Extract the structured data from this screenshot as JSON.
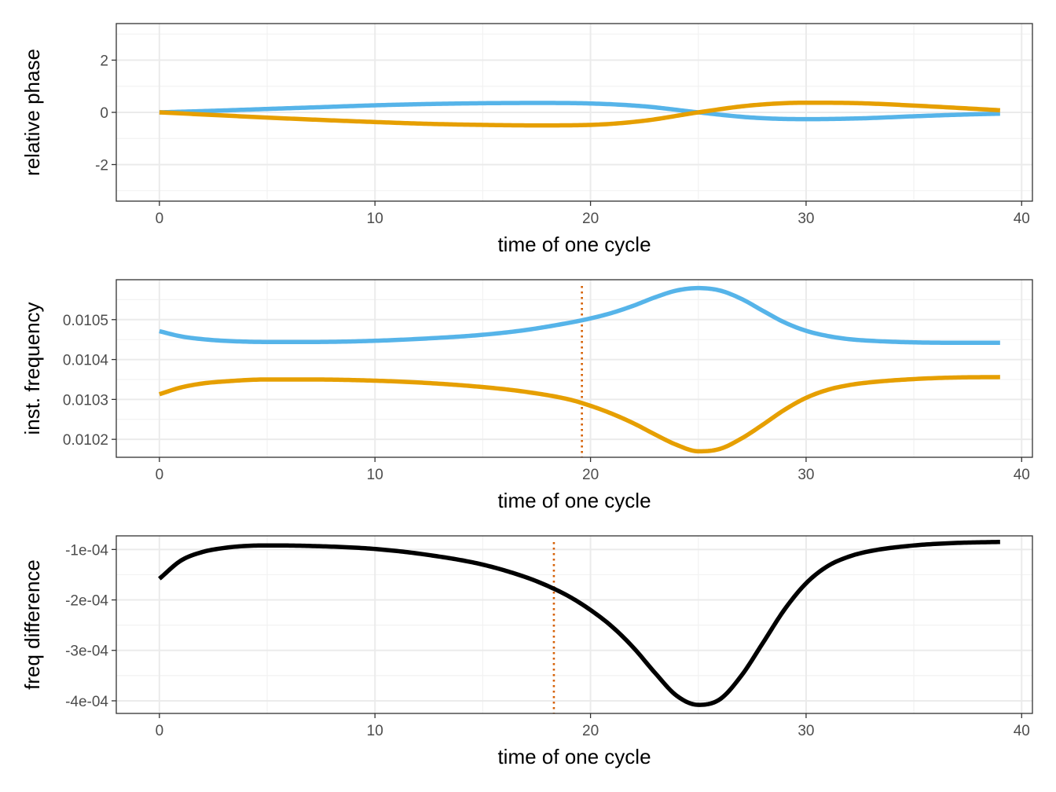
{
  "colors": {
    "series_a": "#56B4E9",
    "series_b": "#E69F00",
    "difference": "#000000",
    "marker": "#D55E00"
  },
  "chart_data": [
    {
      "type": "line",
      "xlabel": "time of one cycle",
      "ylabel": "relative phase",
      "xlim": [
        -2,
        40.5
      ],
      "ylim": [
        -3.4,
        3.4
      ],
      "x_ticks": [
        0,
        10,
        20,
        30,
        40
      ],
      "x_tick_labels": [
        "0",
        "10",
        "20",
        "30",
        "40"
      ],
      "y_ticks": [
        -2,
        0,
        2
      ],
      "y_tick_labels": [
        "-2",
        "0",
        "2"
      ],
      "grid": true,
      "series": [
        {
          "color": "#56B4E9",
          "x": [
            0,
            2.5,
            5,
            7.5,
            10,
            12.5,
            15,
            17.5,
            20,
            22.5,
            25,
            27.5,
            30,
            32.5,
            35,
            37.5,
            39
          ],
          "y": [
            0,
            0.06,
            0.13,
            0.2,
            0.27,
            0.32,
            0.35,
            0.36,
            0.34,
            0.23,
            0.0,
            -0.2,
            -0.26,
            -0.23,
            -0.15,
            -0.08,
            -0.05
          ]
        },
        {
          "color": "#E69F00",
          "x": [
            0,
            2.5,
            5,
            7.5,
            10,
            12.5,
            15,
            17.5,
            20,
            22.5,
            25,
            27.5,
            30,
            32.5,
            35,
            37.5,
            39
          ],
          "y": [
            0,
            -0.1,
            -0.2,
            -0.29,
            -0.37,
            -0.44,
            -0.48,
            -0.5,
            -0.48,
            -0.32,
            0.0,
            0.27,
            0.37,
            0.35,
            0.26,
            0.15,
            0.08
          ]
        }
      ]
    },
    {
      "type": "line",
      "xlabel": "time of one cycle",
      "ylabel": "inst. frequency",
      "xlim": [
        -2,
        40.5
      ],
      "ylim": [
        0.010155,
        0.0106
      ],
      "x_ticks": [
        0,
        10,
        20,
        30,
        40
      ],
      "x_tick_labels": [
        "0",
        "10",
        "20",
        "30",
        "40"
      ],
      "y_ticks": [
        0.0102,
        0.0103,
        0.0104,
        0.0105
      ],
      "y_tick_labels": [
        "0.0102",
        "0.0103",
        "0.0104",
        "0.0105"
      ],
      "vline_x": 19.6,
      "grid": true,
      "series": [
        {
          "color": "#56B4E9",
          "x": [
            0,
            1,
            2,
            3,
            5,
            7,
            10,
            12.5,
            15,
            17,
            19,
            20,
            21,
            22,
            23,
            24,
            25,
            26,
            27,
            28,
            29,
            30,
            31,
            32,
            33,
            35,
            37,
            39
          ],
          "y": [
            0.010471,
            0.010458,
            0.010451,
            0.010447,
            0.010444,
            0.010444,
            0.010447,
            0.010453,
            0.010462,
            0.010474,
            0.010492,
            0.010503,
            0.010517,
            0.010535,
            0.010556,
            0.010573,
            0.010579,
            0.010573,
            0.010552,
            0.010522,
            0.010493,
            0.010472,
            0.010459,
            0.010451,
            0.010447,
            0.010443,
            0.010442,
            0.010442
          ]
        },
        {
          "color": "#E69F00",
          "x": [
            0,
            1,
            2,
            3,
            5,
            7,
            10,
            12.5,
            15,
            17,
            19,
            20,
            21,
            22,
            23,
            24,
            25,
            26,
            27,
            28,
            29,
            30,
            31,
            32,
            33,
            35,
            37,
            39
          ],
          "y": [
            0.010313,
            0.01033,
            0.01034,
            0.010345,
            0.01035,
            0.01035,
            0.010347,
            0.010341,
            0.010331,
            0.010319,
            0.0103,
            0.010284,
            0.010264,
            0.01024,
            0.010212,
            0.010186,
            0.01017,
            0.010176,
            0.010202,
            0.010237,
            0.010274,
            0.010304,
            0.010324,
            0.010336,
            0.010343,
            0.010351,
            0.010355,
            0.010356
          ]
        }
      ]
    },
    {
      "type": "line",
      "xlabel": "time of one cycle",
      "ylabel": "freq difference",
      "xlim": [
        -2,
        40.5
      ],
      "ylim": [
        -0.000425,
        -7.3e-05
      ],
      "x_ticks": [
        0,
        10,
        20,
        30,
        40
      ],
      "x_tick_labels": [
        "0",
        "10",
        "20",
        "30",
        "40"
      ],
      "y_ticks": [
        -0.0004,
        -0.0003,
        -0.0002,
        -0.0001
      ],
      "y_tick_labels": [
        "-4e-04",
        "-3e-04",
        "-2e-04",
        "-1e-04"
      ],
      "vline_x": 18.3,
      "grid": true,
      "series": [
        {
          "color": "#000000",
          "x": [
            0,
            1,
            2,
            3,
            4,
            5,
            7,
            10,
            12.5,
            15,
            17,
            18,
            19,
            20,
            21,
            22,
            23,
            24,
            25,
            26,
            27,
            28,
            29,
            30,
            31,
            32,
            33,
            35,
            37,
            39
          ],
          "y": [
            -0.000158,
            -0.000122,
            -0.000105,
            -9.7e-05,
            -9.3e-05,
            -9.2e-05,
            -9.3e-05,
            -9.9e-05,
            -0.000111,
            -0.00013,
            -0.000155,
            -0.000172,
            -0.000193,
            -0.00022,
            -0.000253,
            -0.000295,
            -0.000345,
            -0.00039,
            -0.000408,
            -0.000397,
            -0.00035,
            -0.000285,
            -0.000219,
            -0.000167,
            -0.000133,
            -0.000114,
            -0.000103,
            -9.2e-05,
            -8.7e-05,
            -8.5e-05
          ]
        }
      ]
    }
  ]
}
